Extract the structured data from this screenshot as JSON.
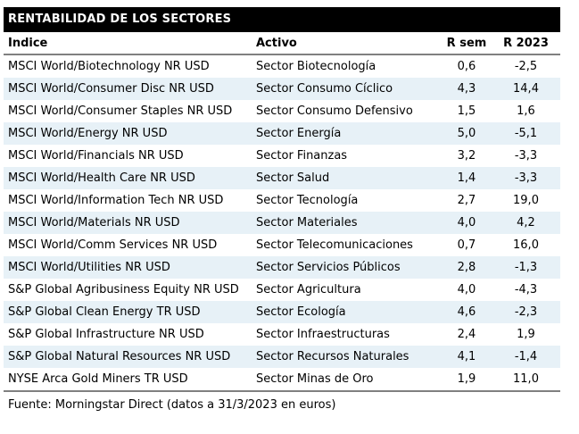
{
  "title": "RENTABILIDAD DE LOS SECTORES",
  "footer": "Fuente: Morningstar Direct (datos a 31/3/2023 en euros)",
  "colors": {
    "title_bg": "#000000",
    "title_fg": "#ffffff",
    "stripe": "#e7f1f7",
    "rule": "#808080",
    "text": "#000000"
  },
  "chart_data": {
    "type": "table",
    "title": "RENTABILIDAD DE LOS SECTORES",
    "columns": [
      "Índice",
      "Activo",
      "R sem",
      "R 2023"
    ],
    "rows": [
      [
        "MSCI World/Biotechnology NR USD",
        "Sector Biotecnología",
        "0,6",
        "-2,5"
      ],
      [
        "MSCI World/Consumer Disc NR USD",
        "Sector Consumo Cíclico",
        "4,3",
        "14,4"
      ],
      [
        "MSCI World/Consumer Staples NR USD",
        "Sector Consumo Defensivo",
        "1,5",
        "1,6"
      ],
      [
        "MSCI World/Energy NR USD",
        "Sector Energía",
        "5,0",
        "-5,1"
      ],
      [
        "MSCI World/Financials NR USD",
        "Sector Finanzas",
        "3,2",
        "-3,3"
      ],
      [
        "MSCI World/Health Care NR USD",
        "Sector Salud",
        "1,4",
        "-3,3"
      ],
      [
        "MSCI World/Information Tech NR USD",
        "Sector Tecnología",
        "2,7",
        "19,0"
      ],
      [
        "MSCI World/Materials NR USD",
        "Sector Materiales",
        "4,0",
        "4,2"
      ],
      [
        "MSCI World/Comm Services NR USD",
        "Sector Telecomunicaciones",
        "0,7",
        "16,0"
      ],
      [
        "MSCI World/Utilities NR USD",
        "Sector Servicios Públicos",
        "2,8",
        "-1,3"
      ],
      [
        "S&P Global Agribusiness Equity NR USD",
        "Sector Agricultura",
        "4,0",
        "-4,3"
      ],
      [
        "S&P Global Clean Energy TR USD",
        "Sector Ecología",
        "4,6",
        "-2,3"
      ],
      [
        "S&P Global Infrastructure NR USD",
        "Sector Infraestructuras",
        "2,4",
        "1,9"
      ],
      [
        "S&P Global Natural Resources NR USD",
        "Sector Recursos Naturales",
        "4,1",
        "-1,4"
      ],
      [
        "NYSE Arca Gold Miners TR USD",
        "Sector Minas de Oro",
        "1,9",
        "11,0"
      ]
    ],
    "r_sem_values": [
      0.6,
      4.3,
      1.5,
      5.0,
      3.2,
      1.4,
      2.7,
      4.0,
      0.7,
      2.8,
      4.0,
      4.6,
      2.4,
      4.1,
      1.9
    ],
    "r_2023_values": [
      -2.5,
      14.4,
      1.6,
      -5.1,
      -3.3,
      -3.3,
      19.0,
      4.2,
      16.0,
      -1.3,
      -4.3,
      -2.3,
      1.9,
      -1.4,
      11.0
    ],
    "source": "Fuente: Morningstar Direct (datos a 31/3/2023 en euros)",
    "decimal_separator": ",",
    "stripe_rows": "even"
  }
}
